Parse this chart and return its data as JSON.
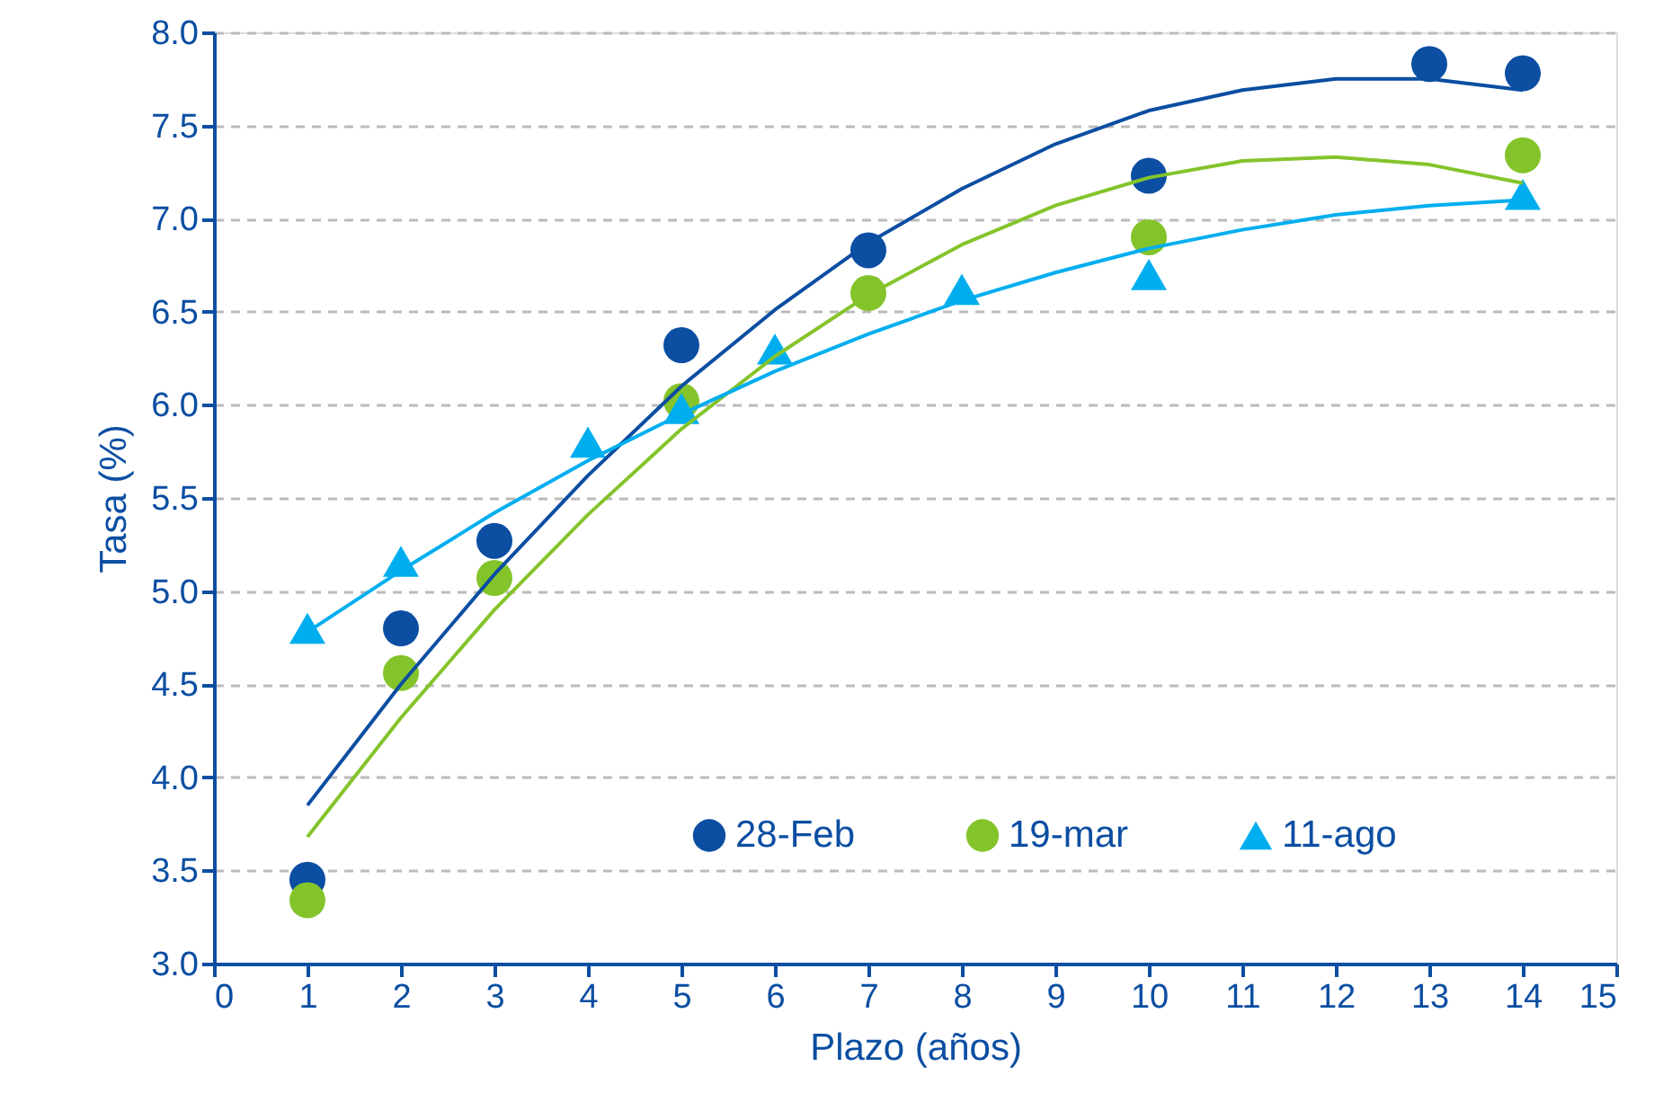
{
  "chart_data": {
    "type": "scatter",
    "xlabel": "Plazo (años)",
    "ylabel": "Tasa (%)",
    "xlim": [
      0,
      15
    ],
    "xticks": [
      0,
      1,
      2,
      3,
      4,
      5,
      6,
      7,
      8,
      9,
      10,
      11,
      12,
      13,
      14,
      15
    ],
    "ylim": [
      3,
      8
    ],
    "yticks": [
      {
        "value": 3,
        "label": "3.0"
      },
      {
        "value": 3.5,
        "label": "3.5"
      },
      {
        "value": 4,
        "label": "4.0"
      },
      {
        "value": 4.5,
        "label": "4.5"
      },
      {
        "value": 5,
        "label": "5.0"
      },
      {
        "value": 5.5,
        "label": "5.5"
      },
      {
        "value": 6,
        "label": "6.0"
      },
      {
        "value": 6.5,
        "label": "6.5"
      },
      {
        "value": 7,
        "label": "7.0"
      },
      {
        "value": 7.5,
        "label": "7.5"
      },
      {
        "value": 8,
        "label": "8.0"
      }
    ],
    "grid": "y",
    "legend": "bottom right",
    "series": [
      {
        "name": "28-Feb",
        "marker": "circle",
        "color": "#0b4ea2",
        "x": [
          1,
          2,
          3,
          5,
          7,
          10,
          13,
          14
        ],
        "values": [
          3.45,
          4.8,
          5.27,
          6.32,
          6.83,
          7.23,
          7.83,
          7.78
        ]
      },
      {
        "name": "19-mar",
        "marker": "circle",
        "color": "#84c42b",
        "x": [
          1,
          2,
          3,
          5,
          7,
          10,
          14
        ],
        "values": [
          3.34,
          4.56,
          5.07,
          6.02,
          6.6,
          6.9,
          7.34
        ]
      },
      {
        "name": "11-ago",
        "marker": "triangle",
        "color": "#00aeef",
        "x": [
          1,
          2,
          4,
          5,
          6,
          8,
          10,
          14
        ],
        "values": [
          4.8,
          5.16,
          5.8,
          5.98,
          6.3,
          6.62,
          6.7,
          7.13
        ]
      },
      {
        "type": "line",
        "marker": "none",
        "line_style": "solid",
        "color": "#0b4ea2",
        "x": [
          1,
          2,
          3,
          4,
          5,
          6,
          7,
          8,
          9,
          10,
          11,
          12,
          13,
          14
        ],
        "values": [
          3.85,
          4.5,
          5.09,
          5.62,
          6.1,
          6.51,
          6.87,
          7.16,
          7.4,
          7.58,
          7.69,
          7.75,
          7.75,
          7.69
        ]
      },
      {
        "type": "line",
        "marker": "none",
        "line_style": "solid",
        "color": "#84c42b",
        "x": [
          1,
          2,
          3,
          4,
          5,
          6,
          7,
          8,
          9,
          10,
          11,
          12,
          13,
          14
        ],
        "values": [
          3.68,
          4.32,
          4.9,
          5.41,
          5.87,
          6.26,
          6.59,
          6.86,
          7.07,
          7.22,
          7.31,
          7.33,
          7.29,
          7.19
        ]
      },
      {
        "type": "line",
        "marker": "none",
        "line_style": "solid",
        "color": "#00aeef",
        "x": [
          1,
          2,
          3,
          4,
          5,
          6,
          7,
          8,
          9,
          10,
          11,
          12,
          13,
          14
        ],
        "values": [
          4.78,
          5.11,
          5.42,
          5.7,
          5.95,
          6.18,
          6.38,
          6.56,
          6.71,
          6.84,
          6.94,
          7.02,
          7.07,
          7.1
        ]
      }
    ]
  }
}
